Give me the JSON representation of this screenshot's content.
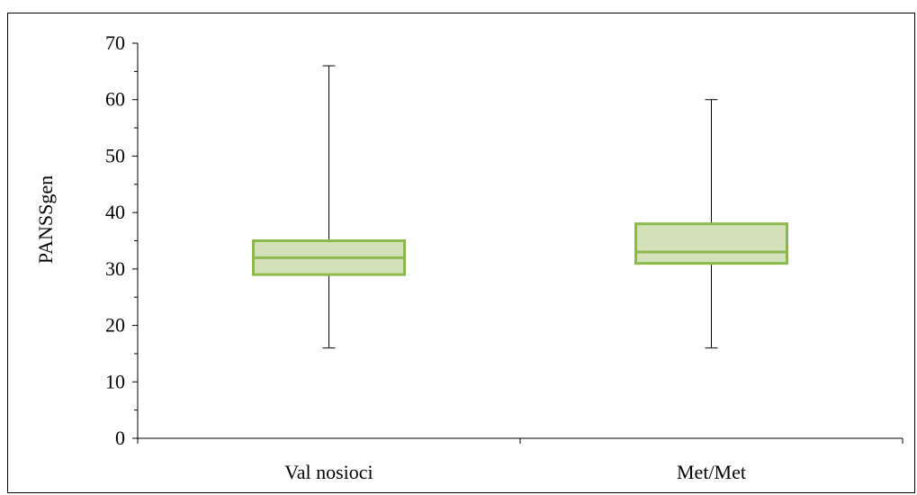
{
  "chart_data": {
    "type": "box",
    "title": "",
    "xlabel": "",
    "ylabel": "PANSSgen",
    "ylim": [
      0,
      70
    ],
    "ytick_step": 10,
    "yticks": [
      "0",
      "10",
      "20",
      "30",
      "40",
      "50",
      "60",
      "70"
    ],
    "categories": [
      "Val nosioci",
      "Met/Met"
    ],
    "boxes": [
      {
        "category": "Val nosioci",
        "min": 16,
        "q1": 29,
        "median": 32,
        "q3": 35,
        "max": 66
      },
      {
        "category": "Met/Met",
        "min": 16,
        "q1": 31,
        "median": 33,
        "q3": 38,
        "max": 60
      }
    ],
    "colors": {
      "box_fill": "#d3e1b9",
      "box_stroke": "#8cb84c",
      "whisker": "#000000"
    },
    "grid": false,
    "legend": "none"
  }
}
